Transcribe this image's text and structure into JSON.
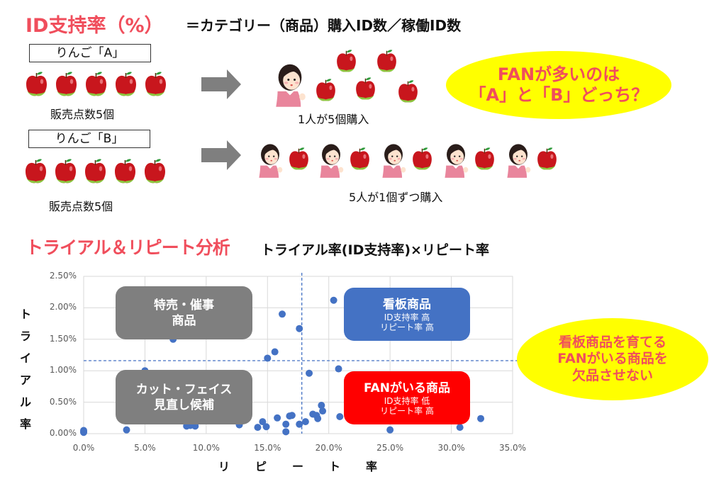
{
  "header": {
    "title": "ID支持率（%）",
    "formula": "＝カテゴリー（商品）購入ID数／稼働ID数"
  },
  "example": {
    "product_a": {
      "label": "りんご「A」",
      "apples": 5,
      "caption": "販売点数5個",
      "result": "1人が5個購入"
    },
    "product_b": {
      "label": "りんご「B」",
      "apples": 5,
      "caption": "販売点数5個",
      "result": "5人が1個ずつ購入"
    },
    "question_bubble": {
      "line1": "FANが多いのは",
      "line2": "「A」と「B」どっち？",
      "bg": "#ffff00",
      "color": "#f04e5c"
    }
  },
  "section2": {
    "title": "トライアル＆リピート分析",
    "subtitle": "トライアル率(ID支持率)×リピート率"
  },
  "quadrants": {
    "top_left": {
      "title_line1": "特売・催事",
      "title_line2": "商品",
      "color": "#7f7f7f"
    },
    "top_right": {
      "title": "看板商品",
      "line1": "ID支持率  高",
      "line2": "リピート率  高",
      "color": "#4472c4"
    },
    "bottom_left": {
      "title_line1": "カット・フェイス",
      "title_line2": "見直し候補",
      "color": "#7f7f7f"
    },
    "bottom_right": {
      "title": "FANがいる商品",
      "line1": "ID支持率  低",
      "line2": "リピート率  高",
      "color": "#ff0000"
    }
  },
  "conclusion_bubble": {
    "line1": "看板商品を育てる",
    "line2": "FANがいる商品を",
    "line3": "欠品させない",
    "bg": "#ffff00",
    "color": "#f04e5c"
  },
  "chart_data": {
    "type": "scatter",
    "title": "トライアル＆リピート分析",
    "xlabel": "リピート率",
    "ylabel": "トライアル率",
    "xlim": [
      0,
      35
    ],
    "ylim": [
      0,
      2.5
    ],
    "x_ticks": [
      "0.0%",
      "5.0%",
      "10.0%",
      "15.0%",
      "20.0%",
      "25.0%",
      "30.0%",
      "35.0%"
    ],
    "y_ticks": [
      "0.00%",
      "0.50%",
      "1.00%",
      "1.50%",
      "2.00%",
      "2.50%"
    ],
    "grid": true,
    "reference_lines": {
      "x": 17.8,
      "y": 1.16
    },
    "series_color": "#4472c4",
    "series": [
      {
        "name": "商品",
        "points": [
          [
            0.0,
            0.02
          ],
          [
            0.0,
            0.05
          ],
          [
            0.0,
            0.03
          ],
          [
            3.5,
            0.06
          ],
          [
            5.0,
            1.0
          ],
          [
            7.3,
            1.5
          ],
          [
            8.4,
            0.12
          ],
          [
            8.7,
            0.13
          ],
          [
            9.0,
            0.14
          ],
          [
            9.1,
            0.12
          ],
          [
            12.7,
            0.14
          ],
          [
            14.2,
            0.1
          ],
          [
            14.6,
            0.19
          ],
          [
            14.9,
            0.11
          ],
          [
            15.0,
            1.2
          ],
          [
            15.6,
            1.3
          ],
          [
            15.8,
            0.25
          ],
          [
            16.2,
            1.9
          ],
          [
            16.5,
            0.15
          ],
          [
            16.5,
            0.03
          ],
          [
            16.8,
            0.28
          ],
          [
            17.0,
            0.29
          ],
          [
            17.6,
            1.67
          ],
          [
            17.6,
            0.15
          ],
          [
            18.1,
            0.19
          ],
          [
            18.4,
            0.96
          ],
          [
            18.7,
            0.31
          ],
          [
            19.0,
            0.29
          ],
          [
            19.1,
            0.24
          ],
          [
            19.4,
            0.45
          ],
          [
            19.5,
            0.36
          ],
          [
            20.4,
            2.12
          ],
          [
            20.9,
            0.27
          ],
          [
            20.8,
            1.03
          ],
          [
            25.0,
            0.06
          ],
          [
            30.7,
            0.1
          ],
          [
            32.4,
            0.24
          ]
        ]
      }
    ]
  }
}
